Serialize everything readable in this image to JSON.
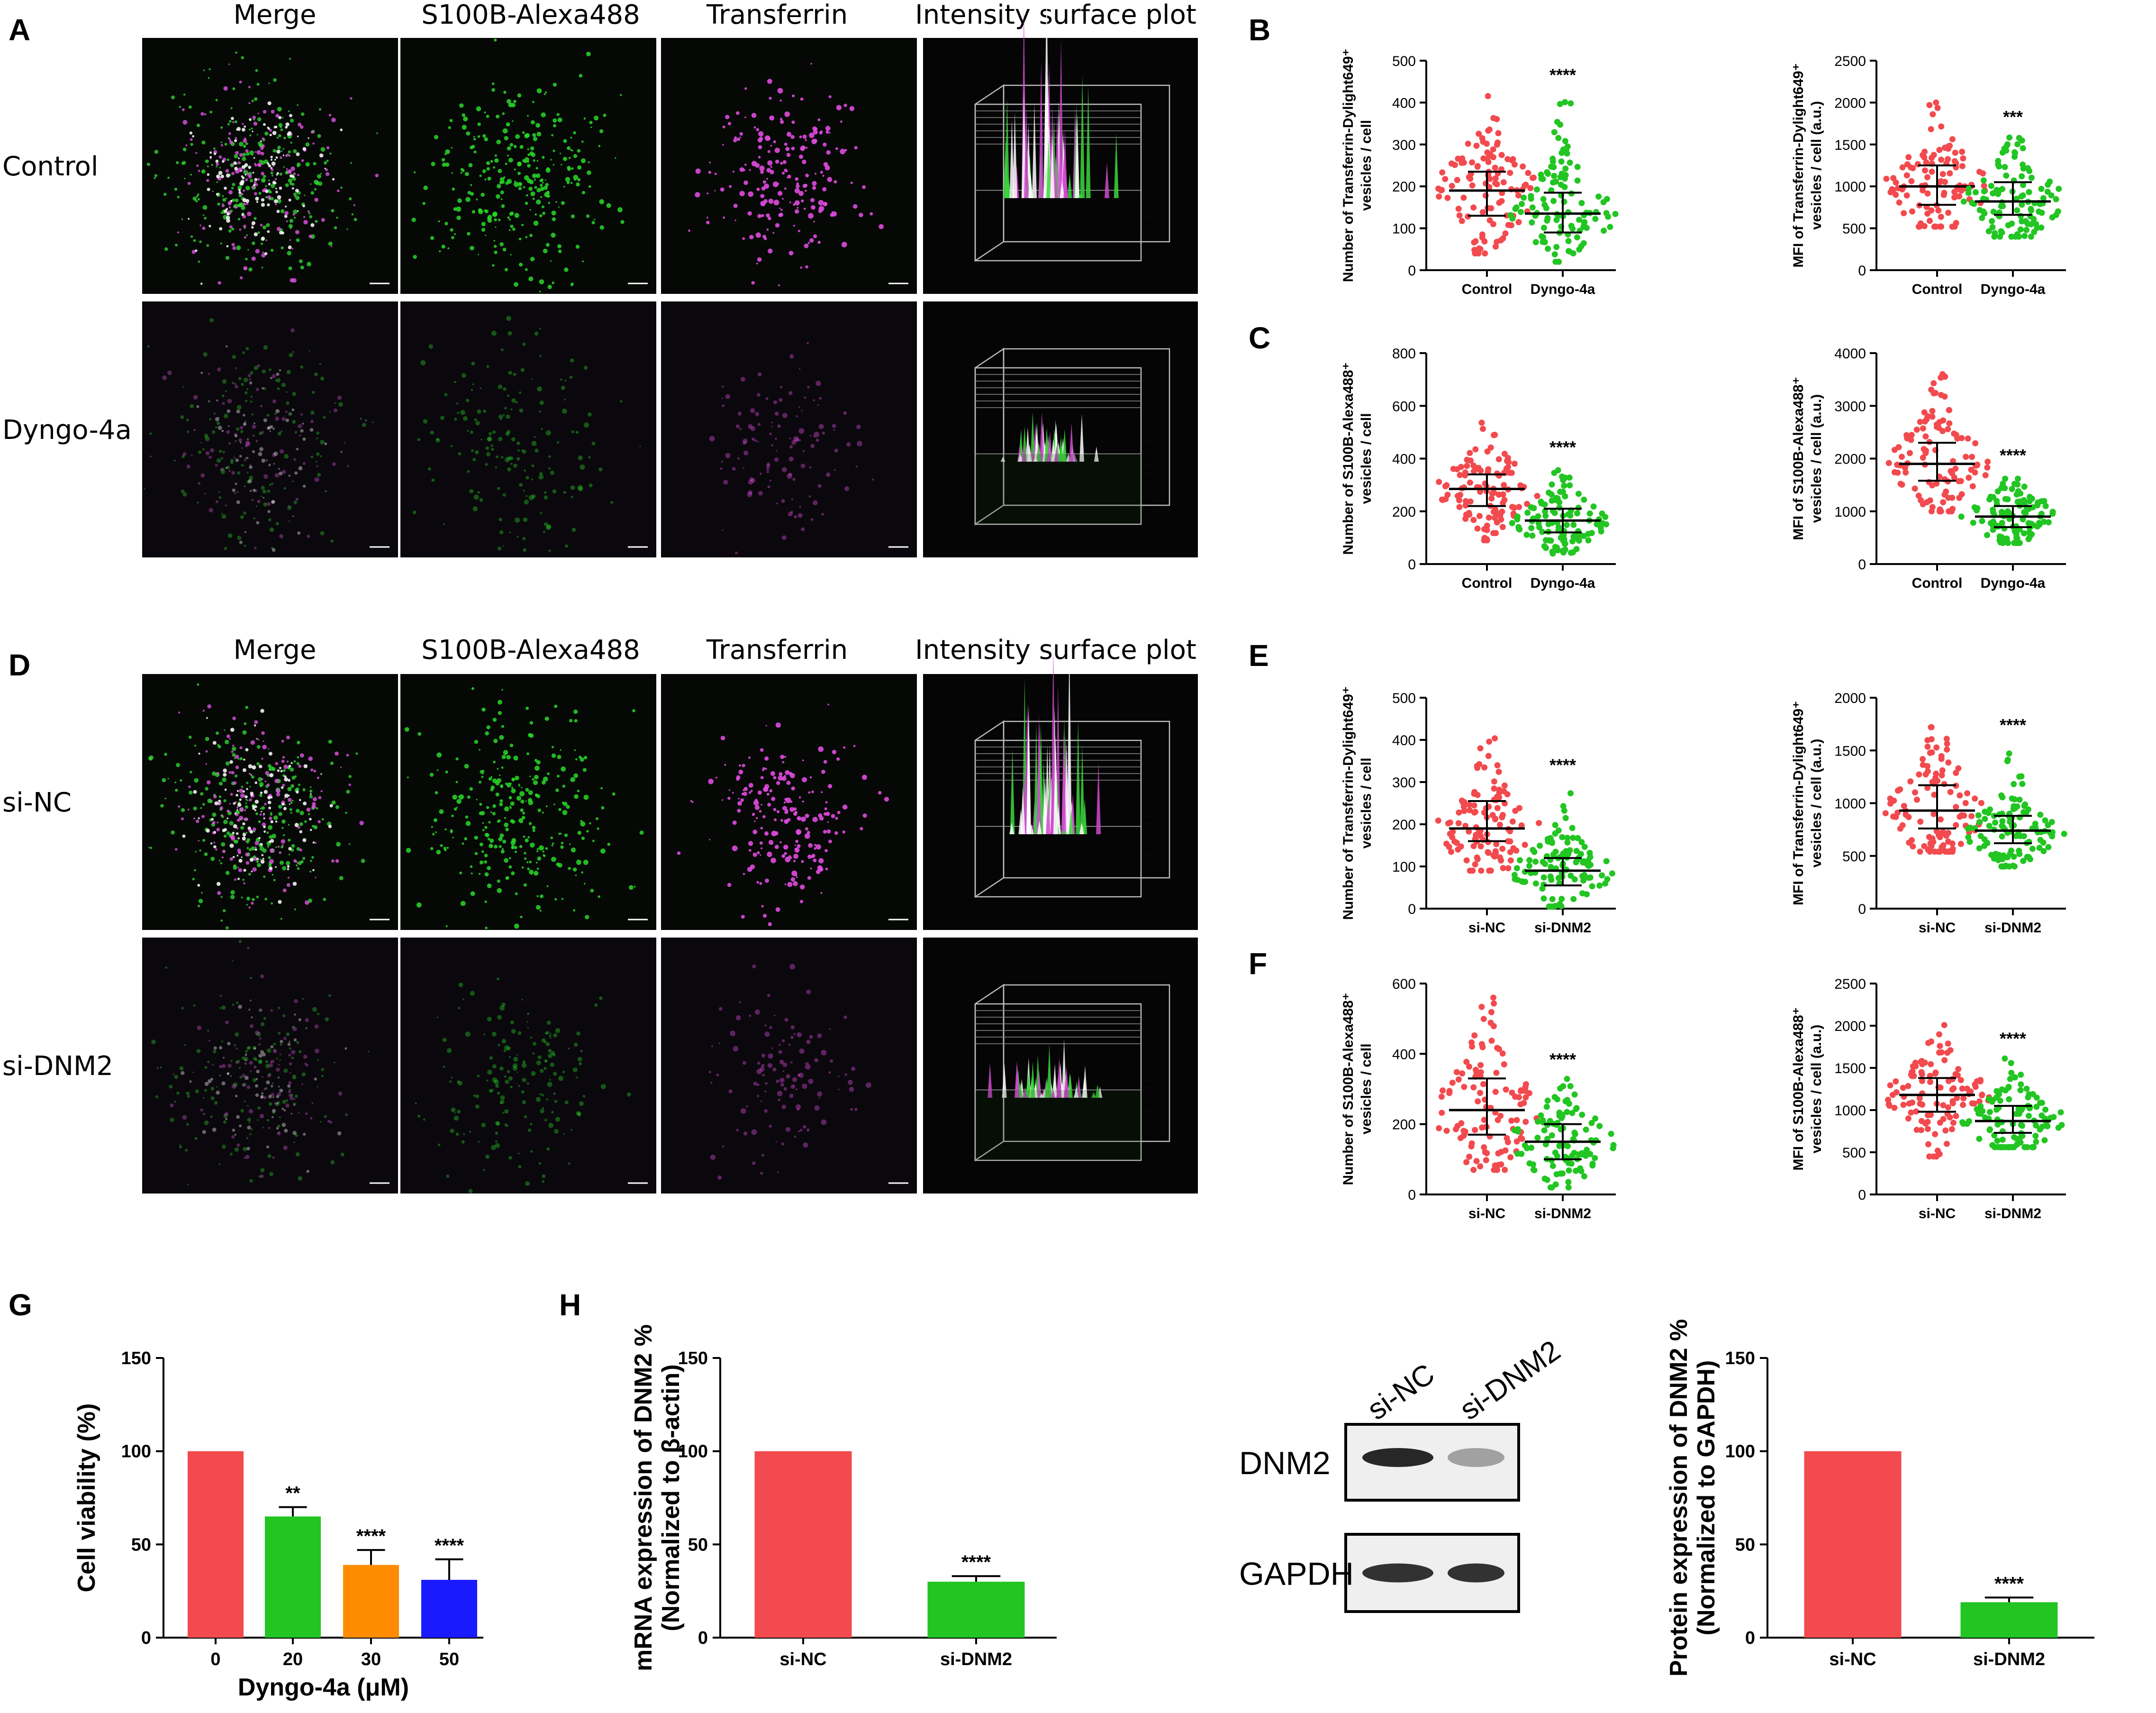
{
  "colors": {
    "red": "#f24a4e",
    "green": "#22c522",
    "orange": "#ff8c00",
    "blue": "#1a1aff",
    "micro_bg": "#050505"
  },
  "panel_letters": {
    "A": "A",
    "B": "B",
    "C": "C",
    "D": "D",
    "E": "E",
    "F": "F",
    "G": "G",
    "H": "H"
  },
  "micrographs": {
    "A": {
      "columns": [
        "Merge",
        "S100B-Alexa488",
        "Transferrin",
        "Intensity surface plot"
      ],
      "rows": [
        "Control",
        "Dyngo-4a"
      ]
    },
    "D": {
      "columns": [
        "Merge",
        "S100B-Alexa488",
        "Transferrin",
        "Intensity surface plot"
      ],
      "rows": [
        "si-NC",
        "si-DNM2"
      ]
    },
    "surface_axis_ticks": [
      "4095",
      "3500",
      "3000",
      "2500",
      "2000",
      "1500",
      "1000",
      "500",
      "0"
    ]
  },
  "blot": {
    "lanes": [
      "si-NC",
      "si-DNM2"
    ],
    "rows": [
      {
        "label": "DNM2",
        "intensity": [
          0.9,
          0.35
        ]
      },
      {
        "label": "GAPDH",
        "intensity": [
          0.85,
          0.85
        ]
      }
    ]
  },
  "chart_data": [
    {
      "id": "B1",
      "type": "scatter",
      "ylabel": "Number of Transferrin-Dylight649⁺ vesicles / cell",
      "categories": [
        "Control",
        "Dyngo-4a"
      ],
      "ylim": [
        0,
        500
      ],
      "yticks": [
        0,
        100,
        200,
        300,
        400,
        500
      ],
      "groups": [
        {
          "name": "Control",
          "median": 190,
          "q1": 130,
          "q3": 235,
          "min": 40,
          "max": 420,
          "color": "red"
        },
        {
          "name": "Dyngo-4a",
          "median": 135,
          "q1": 90,
          "q3": 185,
          "min": 20,
          "max": 420,
          "color": "green"
        }
      ],
      "significance": [
        "",
        "****"
      ]
    },
    {
      "id": "B2",
      "type": "scatter",
      "ylabel": "MFI of Transferrin-Dylight649⁺ vesicles / cell (a.u.)",
      "categories": [
        "Control",
        "Dyngo-4a"
      ],
      "ylim": [
        0,
        2500
      ],
      "yticks": [
        0,
        500,
        1000,
        1500,
        2000,
        2500
      ],
      "groups": [
        {
          "name": "Control",
          "median": 1000,
          "q1": 780,
          "q3": 1250,
          "min": 520,
          "max": 2000,
          "color": "red"
        },
        {
          "name": "Dyngo-4a",
          "median": 820,
          "q1": 660,
          "q3": 1050,
          "min": 400,
          "max": 1600,
          "color": "green"
        }
      ],
      "significance": [
        "",
        "***"
      ]
    },
    {
      "id": "C1",
      "type": "scatter",
      "ylabel": "Number of S100B-Alexa488⁺ vesicles / cell",
      "categories": [
        "Control",
        "Dyngo-4a"
      ],
      "ylim": [
        0,
        800
      ],
      "yticks": [
        0,
        200,
        400,
        600,
        800
      ],
      "groups": [
        {
          "name": "Control",
          "median": 285,
          "q1": 220,
          "q3": 340,
          "min": 90,
          "max": 580,
          "color": "red"
        },
        {
          "name": "Dyngo-4a",
          "median": 165,
          "q1": 120,
          "q3": 210,
          "min": 40,
          "max": 370,
          "color": "green"
        }
      ],
      "significance": [
        "",
        "****"
      ]
    },
    {
      "id": "C2",
      "type": "scatter",
      "ylabel": "MFI of S100B-Alexa488⁺ vesicles / cell (a.u.)",
      "categories": [
        "Control",
        "Dyngo-4a"
      ],
      "ylim": [
        0,
        4000
      ],
      "yticks": [
        0,
        1000,
        2000,
        3000,
        4000
      ],
      "groups": [
        {
          "name": "Control",
          "median": 1900,
          "q1": 1580,
          "q3": 2300,
          "min": 1000,
          "max": 3600,
          "color": "red"
        },
        {
          "name": "Dyngo-4a",
          "median": 900,
          "q1": 700,
          "q3": 1100,
          "min": 400,
          "max": 1700,
          "color": "green"
        }
      ],
      "significance": [
        "",
        "****"
      ]
    },
    {
      "id": "E1",
      "type": "scatter",
      "ylabel": "Number of Transferrin-Dylight649⁺ vesicles / cell",
      "categories": [
        "si-NC",
        "si-DNM2"
      ],
      "ylim": [
        0,
        500
      ],
      "yticks": [
        0,
        100,
        200,
        300,
        400,
        500
      ],
      "groups": [
        {
          "name": "si-NC",
          "median": 190,
          "q1": 160,
          "q3": 255,
          "min": 90,
          "max": 410,
          "color": "red"
        },
        {
          "name": "si-DNM2",
          "median": 90,
          "q1": 55,
          "q3": 120,
          "min": 5,
          "max": 295,
          "color": "green"
        }
      ],
      "significance": [
        "",
        "****"
      ]
    },
    {
      "id": "E2",
      "type": "scatter",
      "ylabel": "MFI of Transferrin-Dylight649⁺ vesicles / cell (a.u.)",
      "categories": [
        "si-NC",
        "si-DNM2"
      ],
      "ylim": [
        0,
        2000
      ],
      "yticks": [
        0,
        500,
        1000,
        1500,
        2000
      ],
      "groups": [
        {
          "name": "si-NC",
          "median": 930,
          "q1": 760,
          "q3": 1170,
          "min": 540,
          "max": 1720,
          "color": "red"
        },
        {
          "name": "si-DNM2",
          "median": 740,
          "q1": 620,
          "q3": 880,
          "min": 400,
          "max": 1560,
          "color": "green"
        }
      ],
      "significance": [
        "",
        "****"
      ]
    },
    {
      "id": "F1",
      "type": "scatter",
      "ylabel": "Number of S100B-Alexa488⁺ vesicles / cell",
      "categories": [
        "si-NC",
        "si-DNM2"
      ],
      "ylim": [
        0,
        600
      ],
      "yticks": [
        0,
        200,
        400,
        600
      ],
      "groups": [
        {
          "name": "si-NC",
          "median": 240,
          "q1": 170,
          "q3": 330,
          "min": 70,
          "max": 560,
          "color": "red"
        },
        {
          "name": "si-DNM2",
          "median": 150,
          "q1": 100,
          "q3": 200,
          "min": 20,
          "max": 330,
          "color": "green"
        }
      ],
      "significance": [
        "",
        "****"
      ]
    },
    {
      "id": "F2",
      "type": "scatter",
      "ylabel": "MFI of S100B-Alexa488⁺ vesicles / cell (a.u.)",
      "categories": [
        "si-NC",
        "si-DNM2"
      ],
      "ylim": [
        0,
        2500
      ],
      "yticks": [
        0,
        500,
        1000,
        1500,
        2000,
        2500
      ],
      "groups": [
        {
          "name": "si-NC",
          "median": 1180,
          "q1": 980,
          "q3": 1380,
          "min": 450,
          "max": 2100,
          "color": "red"
        },
        {
          "name": "si-DNM2",
          "median": 870,
          "q1": 730,
          "q3": 1050,
          "min": 560,
          "max": 1620,
          "color": "green"
        }
      ],
      "significance": [
        "",
        "****"
      ]
    },
    {
      "id": "G",
      "type": "bar",
      "ylabel": "Cell viability (%)",
      "xlabel": "Dyngo-4a (μM)",
      "categories": [
        "0",
        "20",
        "30",
        "50"
      ],
      "values": [
        100,
        65,
        39,
        31
      ],
      "errors": [
        0,
        5,
        8,
        11
      ],
      "colors": [
        "red",
        "green",
        "orange",
        "blue"
      ],
      "ylim": [
        0,
        150
      ],
      "yticks": [
        0,
        50,
        100,
        150
      ],
      "significance": [
        "",
        "**",
        "****",
        "****"
      ]
    },
    {
      "id": "H1",
      "type": "bar",
      "ylabel": "mRNA expression of DNM2 % (Normalized to β-actin)",
      "categories": [
        "si-NC",
        "si-DNM2"
      ],
      "values": [
        100,
        30
      ],
      "errors": [
        0,
        3
      ],
      "colors": [
        "red",
        "green"
      ],
      "ylim": [
        0,
        150
      ],
      "yticks": [
        0,
        50,
        100,
        150
      ],
      "significance": [
        "",
        "****"
      ]
    },
    {
      "id": "H2",
      "type": "bar",
      "ylabel": "Protein expression of DNM2 % (Normalized to GAPDH)",
      "categories": [
        "si-NC",
        "si-DNM2"
      ],
      "values": [
        100,
        19
      ],
      "errors": [
        0,
        2.5
      ],
      "colors": [
        "red",
        "green"
      ],
      "ylim": [
        0,
        150
      ],
      "yticks": [
        0,
        50,
        100,
        150
      ],
      "significance": [
        "",
        "****"
      ]
    }
  ]
}
